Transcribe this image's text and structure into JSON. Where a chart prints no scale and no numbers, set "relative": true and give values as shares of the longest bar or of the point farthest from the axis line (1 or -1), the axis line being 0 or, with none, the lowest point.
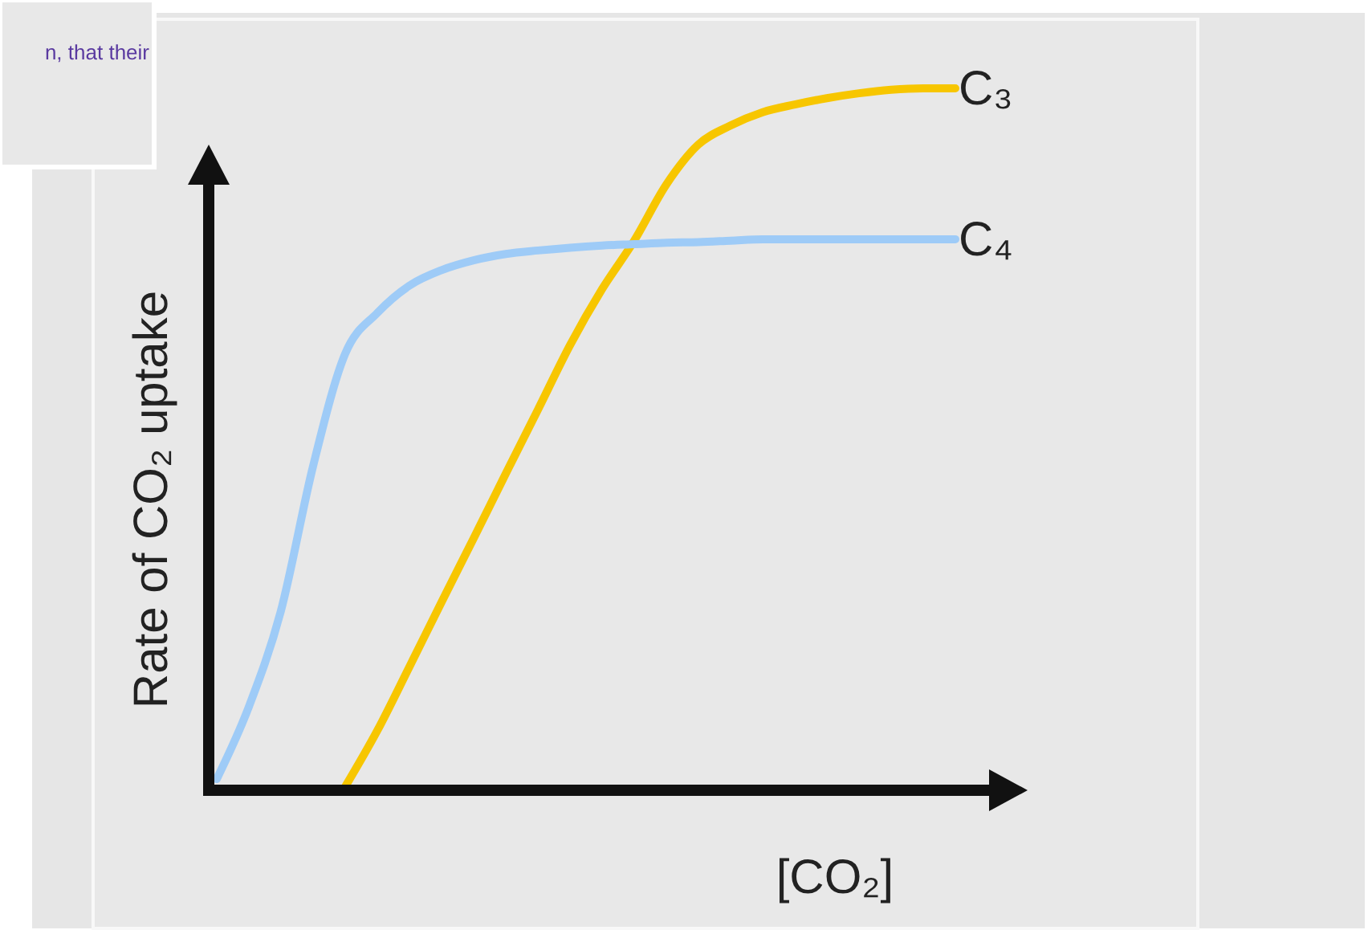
{
  "chart_data": {
    "type": "line",
    "relative": true,
    "xlabel": "[CO₂]",
    "ylabel": "Rate of CO₂ uptake",
    "annotations": [
      "n, that their"
    ],
    "categories": [
      null,
      null,
      null,
      null,
      null,
      null,
      null,
      null,
      null,
      null,
      null,
      null,
      null,
      null,
      null,
      null,
      null,
      null,
      null,
      null,
      null,
      null,
      null,
      null
    ],
    "series": [
      {
        "name": "C₃",
        "color": "#f7c600",
        "values": [
          null,
          null,
          null,
          null,
          0.005,
          0.085,
          0.176,
          0.268,
          0.359,
          0.451,
          0.542,
          0.634,
          0.714,
          0.783,
          0.863,
          0.92,
          0.947,
          0.966,
          0.977,
          0.986,
          0.993,
          0.998,
          1,
          1
        ]
      },
      {
        "name": "C₄",
        "color": "#9ecbf7",
        "values": [
          0.016,
          0.119,
          0.256,
          0.462,
          0.622,
          0.68,
          0.719,
          0.741,
          0.755,
          0.764,
          0.769,
          0.773,
          0.776,
          0.778,
          0.78,
          0.781,
          0.783,
          0.785,
          0.785,
          0.785,
          0.785,
          0.785,
          0.785,
          0.785
        ]
      }
    ],
    "marker": "none",
    "line_style": "solid"
  }
}
